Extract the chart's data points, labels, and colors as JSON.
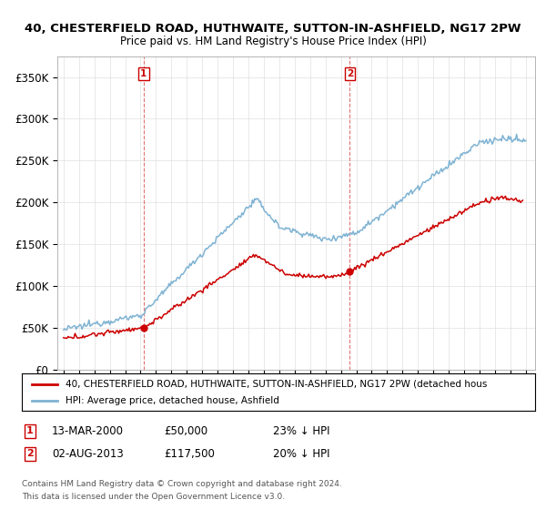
{
  "title": "40, CHESTERFIELD ROAD, HUTHWAITE, SUTTON-IN-ASHFIELD, NG17 2PW",
  "subtitle": "Price paid vs. HM Land Registry's House Price Index (HPI)",
  "ylim": [
    0,
    370000
  ],
  "yticks": [
    0,
    50000,
    100000,
    150000,
    200000,
    250000,
    300000,
    350000
  ],
  "ytick_labels": [
    "£0",
    "£50K",
    "£100K",
    "£150K",
    "£200K",
    "£250K",
    "£300K",
    "£350K"
  ],
  "sale1_date": 2000.19,
  "sale1_price": 50000,
  "sale1_label": "1",
  "sale1_year_label": "13-MAR-2000",
  "sale1_price_label": "£50,000",
  "sale1_pct_label": "23% ↓ HPI",
  "sale2_date": 2013.58,
  "sale2_price": 117500,
  "sale2_label": "2",
  "sale2_year_label": "02-AUG-2013",
  "sale2_price_label": "£117,500",
  "sale2_pct_label": "20% ↓ HPI",
  "legend_line1": "40, CHESTERFIELD ROAD, HUTHWAITE, SUTTON-IN-ASHFIELD, NG17 2PW (detached hous",
  "legend_line2": "HPI: Average price, detached house, Ashfield",
  "footer1": "Contains HM Land Registry data © Crown copyright and database right 2024.",
  "footer2": "This data is licensed under the Open Government Licence v3.0.",
  "line_color_price": "#cc0000",
  "line_color_hpi": "#7fb3d3",
  "background_color": "#ffffff",
  "grid_color": "#e0e0e0"
}
